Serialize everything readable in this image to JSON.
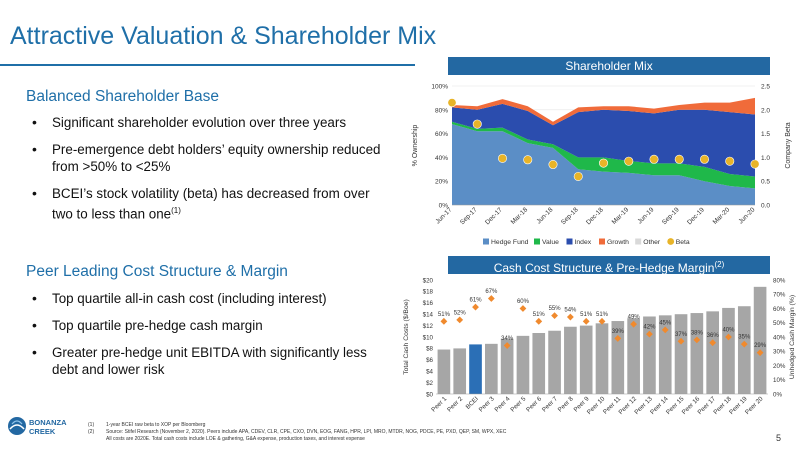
{
  "title": "Attractive Valuation & Shareholder Mix",
  "left": {
    "section1": {
      "heading": "Balanced Shareholder Base",
      "bullets": [
        "Significant shareholder evolution over three years",
        "Pre-emergence debt holders’ equity ownership reduced from >50% to <25%",
        "BCEI’s stock volatility (beta) has decreased from over two to less than one"
      ],
      "bullet3_sup": "(1)"
    },
    "section2": {
      "heading": "Peer Leading Cost Structure & Margin",
      "bullets": [
        "Top quartile all-in cash cost (including interest)",
        "Top quartile pre-hedge cash margin",
        "Greater pre-hedge unit EBITDA with significantly less debt and lower risk"
      ]
    }
  },
  "logo": {
    "line1": "BONANZA",
    "line2": "CREEK"
  },
  "footnotes": [
    {
      "num": "(1)",
      "text": "1-year BCEI raw beta to XOP per Bloomberg"
    },
    {
      "num": "(2)",
      "text": "Source: Stifel Research (November 2, 2020). Peers include APA, CDEV, CLR, CPE, CXO, DVN, EOG, FANG, HPR, LPI, MRO, MTDR, NOG, PDCE, PE, PXD, QEP, SM, WPX, XEC"
    },
    {
      "num": "",
      "text": "All costs are 2020E. Total cash costs include LOE & gathering, G&A expense, production taxes, and interest expense"
    }
  ],
  "page_number": "5",
  "chart_data": [
    {
      "type": "area",
      "title": "Shareholder Mix",
      "ylabel": "% Ownership",
      "y2label": "Company Beta",
      "ylim": [
        0,
        100
      ],
      "y2lim": [
        0,
        2.5
      ],
      "yticks": [
        "0%",
        "20%",
        "40%",
        "60%",
        "80%",
        "100%"
      ],
      "y2ticks": [
        "0.0",
        "0.5",
        "1.0",
        "1.5",
        "2.0",
        "2.5"
      ],
      "categories": [
        "Jun-17",
        "Sep-17",
        "Dec-17",
        "Mar-18",
        "Jun-18",
        "Sep-18",
        "Dec-18",
        "Mar-19",
        "Jun-19",
        "Sep-19",
        "Dec-19",
        "Mar-20",
        "Jun-20"
      ],
      "series": [
        {
          "name": "Hedge Fund",
          "color": "#5b8ec6",
          "values": [
            68,
            62,
            62,
            52,
            48,
            30,
            28,
            27,
            25,
            25,
            20,
            16,
            14
          ]
        },
        {
          "name": "Value",
          "color": "#1fb84a",
          "values": [
            2,
            2,
            3,
            3,
            3,
            10,
            12,
            10,
            10,
            10,
            12,
            10,
            10
          ]
        },
        {
          "name": "Index",
          "color": "#2b4dae",
          "values": [
            12,
            16,
            20,
            24,
            16,
            38,
            40,
            42,
            42,
            45,
            48,
            52,
            52
          ]
        },
        {
          "name": "Growth",
          "color": "#f06b3a",
          "values": [
            2,
            3,
            4,
            4,
            3,
            4,
            3,
            4,
            4,
            4,
            6,
            8,
            14
          ]
        },
        {
          "name": "Other",
          "color": "#d9d9d9",
          "values": [
            0,
            0,
            0,
            0,
            0,
            0,
            0,
            0,
            0,
            0,
            0,
            0,
            0
          ]
        }
      ],
      "beta": {
        "name": "Beta",
        "color": "#e8b428",
        "values": [
          2.15,
          1.7,
          0.98,
          0.95,
          0.85,
          0.6,
          0.88,
          0.92,
          0.96,
          0.96,
          0.96,
          0.92,
          0.86
        ]
      },
      "legend": "bottom"
    },
    {
      "type": "bar",
      "title": "Cash Cost Structure & Pre-Hedge Margin",
      "title_sup": "(2)",
      "ylabel": "Total Cash Costs ($/Boe)",
      "y2label": "Unhedged Cash Margin (%)",
      "ylim": [
        0,
        20
      ],
      "y2lim": [
        0,
        80
      ],
      "yticks": [
        "$0",
        "$2",
        "$4",
        "$6",
        "$8",
        "$10",
        "$12",
        "$14",
        "$16",
        "$18",
        "$20"
      ],
      "y2ticks": [
        "0%",
        "10%",
        "20%",
        "30%",
        "40%",
        "50%",
        "60%",
        "70%",
        "80%"
      ],
      "categories": [
        "Peer 1",
        "Peer 2",
        "BCEI",
        "Peer 3",
        "Peer 4",
        "Peer 5",
        "Peer 6",
        "Peer 7",
        "Peer 8",
        "Peer 9",
        "Peer 10",
        "Peer 11",
        "Peer 12",
        "Peer 13",
        "Peer 14",
        "Peer 15",
        "Peer 16",
        "Peer 17",
        "Peer 18",
        "Peer 19",
        "Peer 20"
      ],
      "costs": [
        7.8,
        8.0,
        8.7,
        8.8,
        9.7,
        10.2,
        10.7,
        11.1,
        11.8,
        12.0,
        12.4,
        12.8,
        13.3,
        13.6,
        13.8,
        14.0,
        14.2,
        14.5,
        15.1,
        15.4,
        18.8
      ],
      "margins": [
        51,
        52,
        61,
        67,
        34,
        60,
        51,
        55,
        54,
        51,
        51,
        39,
        49,
        42,
        45,
        37,
        38,
        36,
        40,
        35,
        29
      ],
      "margin_labels": [
        "51%",
        "52%",
        "61%",
        "67%",
        "34%",
        "60%",
        "51%",
        "55%",
        "54%",
        "51%",
        "51%",
        "39%",
        "49%",
        "42%",
        "45%",
        "37%",
        "38%",
        "36%",
        "40%",
        "35%",
        "29%"
      ],
      "highlight": "BCEI",
      "colors": {
        "peer": "#a6a6a6",
        "bcei": "#2b6fb6",
        "margin": "#f08a2e"
      }
    }
  ]
}
